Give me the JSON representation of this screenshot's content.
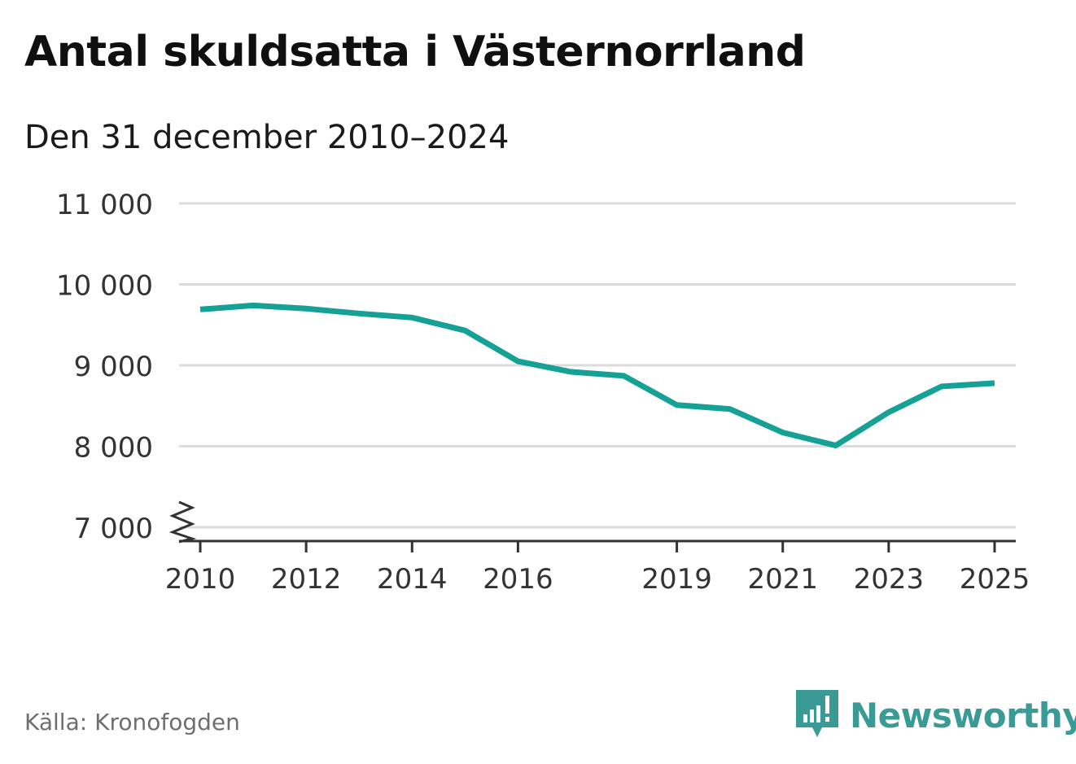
{
  "title": "Antal skuldsatta i Västernorrland",
  "subtitle": "Den 31 december 2010–2024",
  "source": "Källa: Kronofogden",
  "brand": {
    "name": "Newsworthy",
    "icon": "newsworthy-logo-icon",
    "color": "#3a9b96"
  },
  "colors": {
    "line": "#15a196",
    "grid": "#dcdcdc",
    "axis": "#333333",
    "text": "#333333"
  },
  "chart_data": {
    "type": "line",
    "title": "Antal skuldsatta i Västernorrland",
    "subtitle": "Den 31 december 2010–2024",
    "xlabel": "",
    "ylabel": "",
    "x": [
      2010,
      2011,
      2012,
      2013,
      2014,
      2015,
      2016,
      2017,
      2018,
      2019,
      2020,
      2021,
      2022,
      2023,
      2024,
      2025
    ],
    "series": [
      {
        "name": "Antal skuldsatta",
        "values": [
          9690,
          9740,
          9700,
          9640,
          9590,
          9430,
          9050,
          8920,
          8870,
          8510,
          8460,
          8170,
          8010,
          8420,
          8740,
          8780
        ]
      }
    ],
    "xticks": [
      2010,
      2012,
      2014,
      2016,
      2019,
      2021,
      2023,
      2025
    ],
    "xtick_labels": [
      "2010",
      "2012",
      "2014",
      "2016",
      "2019",
      "2021",
      "2023",
      "2025"
    ],
    "yticks": [
      7000,
      8000,
      9000,
      10000,
      11000
    ],
    "ytick_labels": [
      "7 000",
      "8 000",
      "9 000",
      "10 000",
      "11 000"
    ],
    "ylim": [
      7000,
      11000
    ],
    "xlim": [
      2009.6,
      2025.4
    ],
    "axis_break": true,
    "grid": true
  }
}
